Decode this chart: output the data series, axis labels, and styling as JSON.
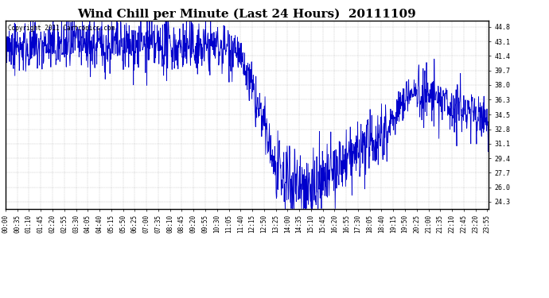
{
  "title": "Wind Chill per Minute (Last 24 Hours)  20111109",
  "copyright_text": "Copyright 2011 Cartronics.com",
  "line_color": "#0000cc",
  "bg_color": "#ffffff",
  "plot_bg_color": "#ffffff",
  "grid_color": "#aaaaaa",
  "yticks": [
    24.3,
    26.0,
    27.7,
    29.4,
    31.1,
    32.8,
    34.5,
    36.3,
    38.0,
    39.7,
    41.4,
    43.1,
    44.8
  ],
  "ylim": [
    23.5,
    45.5
  ],
  "title_fontsize": 11,
  "tick_fontsize": 5.5,
  "copyright_fontsize": 5.5,
  "linewidth": 0.6
}
